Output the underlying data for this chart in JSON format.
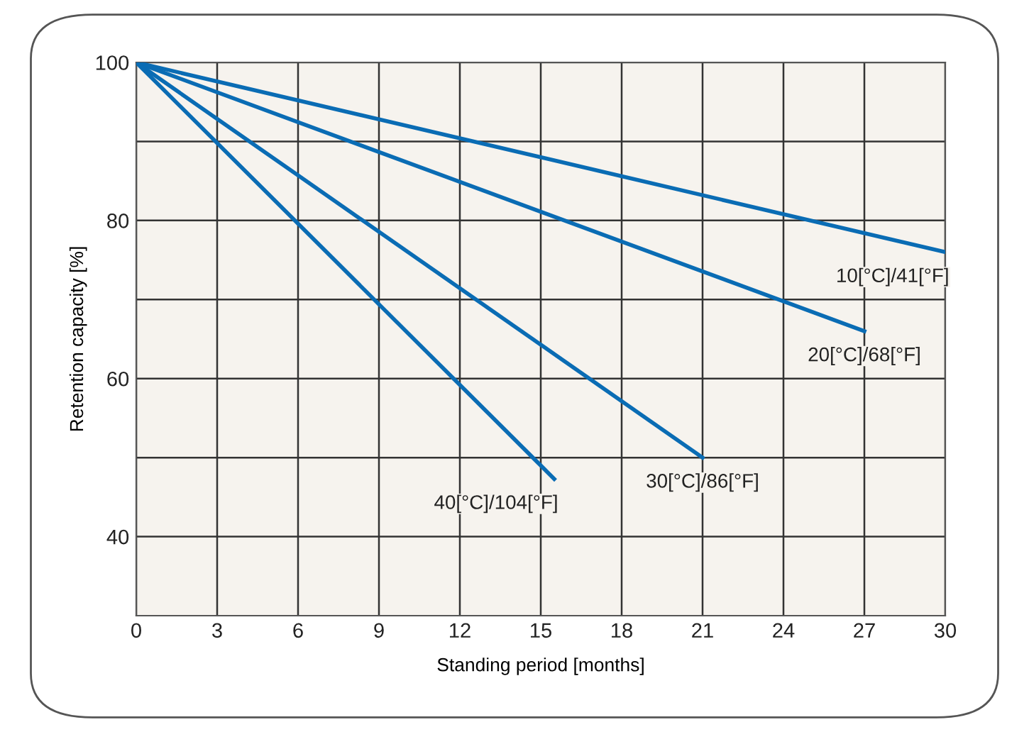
{
  "chart_data": {
    "type": "line",
    "xlabel": "Standing period [months]",
    "ylabel": "Retention capacity [%]",
    "series": [
      {
        "color": "#0a6cb4",
        "x": [
          0,
          30
        ],
        "values": [
          100,
          76
        ]
      },
      {
        "color": "#0a6cb4",
        "x": [
          0,
          27
        ],
        "values": [
          100,
          66
        ]
      },
      {
        "color": "#0a6cb4",
        "x": [
          0,
          21
        ],
        "values": [
          100,
          50
        ]
      },
      {
        "color": "#0a6cb4",
        "x": [
          0,
          15.5
        ],
        "values": [
          100,
          47.3
        ]
      }
    ],
    "annotations": [
      {
        "text": "10[°C]/41[°F]",
        "x": 30,
        "y": 76
      },
      {
        "text": "20[°C]/68[°F]",
        "x": 27,
        "y": 66
      },
      {
        "text": "30[°C]/86[°F]",
        "x": 21,
        "y": 50
      },
      {
        "text": "40[°C]/104[°F]",
        "x": 15.5,
        "y": 47.3
      }
    ],
    "xlim": [
      0,
      30
    ],
    "xticks": [
      0,
      3,
      6,
      9,
      12,
      15,
      18,
      21,
      24,
      27,
      30
    ],
    "ylim": [
      30,
      100
    ],
    "yticks": [
      40,
      {
        "value": 50,
        "label": null
      },
      60,
      {
        "value": 70,
        "label": null
      },
      80,
      {
        "value": 90,
        "label": null
      },
      100
    ],
    "grid": true,
    "marker": "none",
    "line_style": "solid",
    "legend": false
  }
}
